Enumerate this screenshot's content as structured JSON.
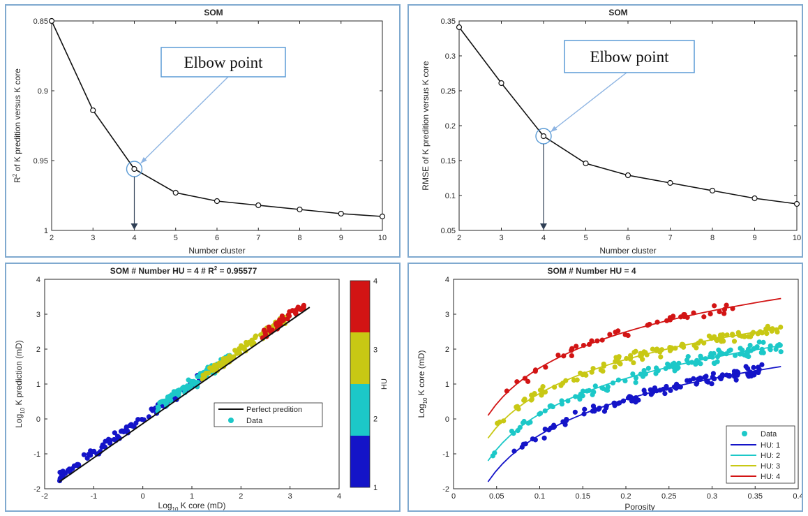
{
  "chart_data": [
    {
      "type": "line",
      "title": "SOM",
      "xlabel": "Number cluster",
      "ylabel": "R² of K predition versus K core",
      "ylabel_main": "R",
      "ylabel_sup": "2",
      "ylabel_rest": " of K predition versus K core",
      "xlim": [
        2,
        10
      ],
      "ylim": [
        0.85,
        1
      ],
      "y_reversed": true,
      "x_ticks": [
        "2",
        "3",
        "4",
        "5",
        "6",
        "7",
        "8",
        "9",
        "10"
      ],
      "y_ticks": [
        "0.85",
        "0.9",
        "0.95",
        "1"
      ],
      "x": [
        2,
        3,
        4,
        5,
        6,
        7,
        8,
        9,
        10
      ],
      "values": [
        0.85,
        0.914,
        0.956,
        0.973,
        0.979,
        0.982,
        0.985,
        0.988,
        0.99
      ],
      "annotation": "Elbow point",
      "elbow_x": 4
    },
    {
      "type": "line",
      "title": "SOM",
      "xlabel": "Number cluster",
      "ylabel": "RMSE of K predition versus K core",
      "xlim": [
        2,
        10
      ],
      "ylim": [
        0.05,
        0.35
      ],
      "x_ticks": [
        "2",
        "3",
        "4",
        "5",
        "6",
        "7",
        "8",
        "9",
        "10"
      ],
      "y_ticks": [
        "0.05",
        "0.1",
        "0.15",
        "0.2",
        "0.25",
        "0.3",
        "0.35"
      ],
      "x": [
        2,
        3,
        4,
        5,
        6,
        7,
        8,
        9,
        10
      ],
      "values": [
        0.341,
        0.261,
        0.185,
        0.146,
        0.129,
        0.118,
        0.107,
        0.096,
        0.088
      ],
      "annotation": "Elbow point",
      "elbow_x": 4
    },
    {
      "type": "scatter",
      "title": "SOM # Number HU = 4 #  R² = 0.95577",
      "title_main": "SOM # Number HU = 4 #  R",
      "title_sup": "2",
      "title_rest": " = 0.95577",
      "xlabel": "Log₁₀ K core (mD)",
      "xlabel_pre": "Log",
      "xlabel_sub": "10",
      "xlabel_post": " K core (mD)",
      "ylabel": "Log₁₀ K prediction (mD)",
      "ylabel_pre": "Log",
      "ylabel_sub": "10",
      "ylabel_post": " K prediction (mD)",
      "xlim": [
        -2,
        4
      ],
      "ylim": [
        -2,
        4
      ],
      "x_ticks": [
        "-2",
        "-1",
        "0",
        "1",
        "2",
        "3",
        "4"
      ],
      "y_ticks": [
        "-2",
        "-1",
        "0",
        "1",
        "2",
        "3",
        "4"
      ],
      "legend": [
        "Perfect predition",
        "Data"
      ],
      "colorbar_label": "HU",
      "colorbar_ticks": [
        "1",
        "2",
        "3",
        "4"
      ],
      "series": [
        {
          "hu": 1,
          "x_range": [
            -1.7,
            1.2
          ],
          "offset": 0
        },
        {
          "hu": 2,
          "x_range": [
            0.3,
            1.8
          ],
          "offset": 0.05
        },
        {
          "hu": 3,
          "x_range": [
            1.2,
            2.9
          ],
          "offset": 0.02
        },
        {
          "hu": 4,
          "x_range": [
            2.4,
            3.3
          ],
          "offset": 0
        }
      ],
      "fit_line": [
        [
          -1.7,
          -1.8
        ],
        [
          3.4,
          3.2
        ]
      ]
    },
    {
      "type": "scatter",
      "title": "SOM # Number HU = 4",
      "xlabel": "Porosity",
      "ylabel": "Log₁₀ K core (mD)",
      "ylabel_pre": "Log",
      "ylabel_sub": "10",
      "ylabel_post": " K core (mD)",
      "xlim": [
        0,
        0.4
      ],
      "ylim": [
        -2,
        4
      ],
      "x_ticks": [
        "0",
        "0.05",
        "0.1",
        "0.15",
        "0.2",
        "0.25",
        "0.3",
        "0.35",
        "0.4"
      ],
      "y_ticks": [
        "-2",
        "-1",
        "0",
        "1",
        "2",
        "3",
        "4"
      ],
      "legend": [
        "Data",
        "HU: 1",
        "HU: 2",
        "HU: 3",
        "HU: 4"
      ],
      "series": [
        {
          "name": "HU: 1",
          "x_range": [
            0.04,
            0.36
          ],
          "curve": [
            [
              0.04,
              -1.8
            ],
            [
              0.38,
              1.5
            ]
          ]
        },
        {
          "name": "HU: 2",
          "x_range": [
            0.04,
            0.38
          ],
          "curve": [
            [
              0.04,
              -1.2
            ],
            [
              0.38,
              2.1
            ]
          ]
        },
        {
          "name": "HU: 3",
          "x_range": [
            0.04,
            0.38
          ],
          "curve": [
            [
              0.04,
              -0.55
            ],
            [
              0.38,
              2.6
            ]
          ]
        },
        {
          "name": "HU: 4",
          "x_range": [
            0.06,
            0.33
          ],
          "curve": [
            [
              0.04,
              0.1
            ],
            [
              0.38,
              3.45
            ]
          ]
        }
      ]
    }
  ],
  "colors": {
    "hu1": "#1414c8",
    "hu2": "#1cc8c8",
    "hu3": "#c8c814",
    "hu4": "#d21414",
    "line": "#111111",
    "callout_border": "#5b9bd5",
    "arrow": "#8db4e2",
    "panel_border": "#7fa9cf"
  }
}
